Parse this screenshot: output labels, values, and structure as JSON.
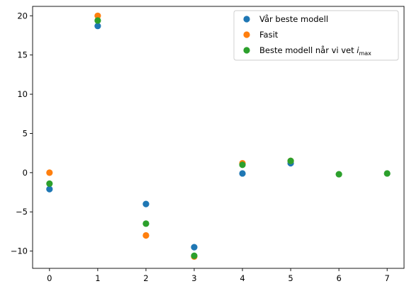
{
  "chart_data": {
    "type": "scatter",
    "title": "",
    "xlabel": "",
    "ylabel": "",
    "xlim": [
      -0.35,
      7.35
    ],
    "ylim": [
      -12.2,
      21.2
    ],
    "x_ticks": [
      0,
      1,
      2,
      3,
      4,
      5,
      6,
      7
    ],
    "y_ticks": [
      -10,
      -5,
      0,
      5,
      10,
      15,
      20
    ],
    "grid": false,
    "legend_position": "top-right",
    "series": [
      {
        "name": "Vår beste modell",
        "color": "#1f77b4",
        "x": [
          0,
          1,
          2,
          3,
          4,
          5
        ],
        "y": [
          -2.1,
          18.7,
          -4.0,
          -9.5,
          -0.1,
          1.2
        ]
      },
      {
        "name": "Fasit",
        "color": "#ff7f0e",
        "x": [
          0,
          1,
          2,
          3,
          4,
          5
        ],
        "y": [
          0.0,
          20.0,
          -8.0,
          -10.7,
          1.2,
          1.5
        ]
      },
      {
        "name": "Beste modell når vi vet ",
        "name_italic": "i",
        "name_subscript": "max",
        "color": "#2ca02c",
        "x": [
          0,
          1,
          2,
          3,
          4,
          5,
          6,
          7
        ],
        "y": [
          -1.4,
          19.4,
          -6.5,
          -10.6,
          1.0,
          1.5,
          -0.2,
          -0.1
        ]
      }
    ]
  }
}
